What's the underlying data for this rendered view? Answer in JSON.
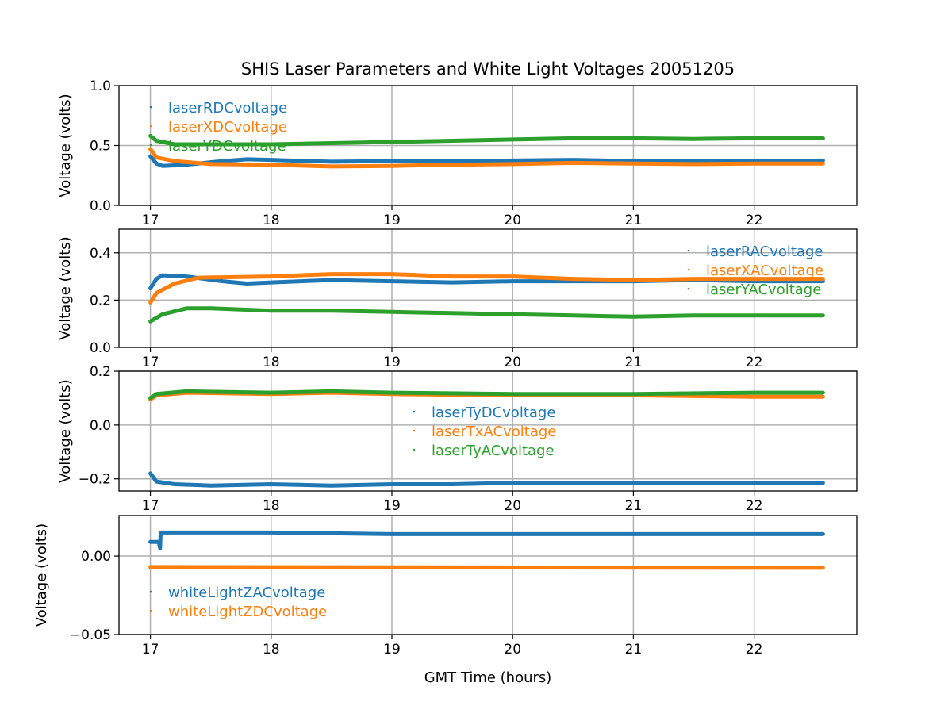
{
  "chart_data": {
    "type": "scatter",
    "title": "SHIS Laser Parameters and White Light Voltages 20051205",
    "xlabel": "GMT Time (hours)",
    "xlim": [
      16.74,
      22.85
    ],
    "xticks": [
      17,
      18,
      19,
      20,
      21,
      22
    ],
    "grid": true,
    "colors": [
      "#1f77b4",
      "#ff7f0e",
      "#2ca02c"
    ],
    "subplots": [
      {
        "ylabel": "Voltage (volts)",
        "ylim": [
          0,
          1.0
        ],
        "yticks": [
          0.0,
          0.5,
          1.0
        ],
        "ytick_labels": [
          "0.0",
          "0.5",
          "1.0"
        ],
        "legend": "upper left",
        "series": [
          {
            "name": "laserRDCvoltage",
            "x": [
              17.0,
              17.05,
              17.1,
              17.3,
              17.6,
              17.8,
              18,
              18.5,
              19,
              19.5,
              20,
              20.5,
              21,
              21.5,
              22,
              22.57
            ],
            "y": [
              0.41,
              0.35,
              0.33,
              0.34,
              0.37,
              0.385,
              0.38,
              0.365,
              0.37,
              0.37,
              0.375,
              0.38,
              0.37,
              0.37,
              0.37,
              0.375
            ]
          },
          {
            "name": "laserXDCvoltage",
            "x": [
              17.0,
              17.05,
              17.2,
              17.5,
              18,
              18.5,
              19,
              19.5,
              20,
              20.5,
              21,
              21.5,
              22,
              22.57
            ],
            "y": [
              0.47,
              0.4,
              0.37,
              0.345,
              0.34,
              0.325,
              0.33,
              0.34,
              0.345,
              0.355,
              0.35,
              0.345,
              0.35,
              0.35
            ]
          },
          {
            "name": "laserYDCvoltage",
            "x": [
              17.0,
              17.05,
              17.2,
              17.5,
              18,
              18.5,
              19,
              19.5,
              20,
              20.5,
              21,
              21.5,
              22,
              22.57
            ],
            "y": [
              0.58,
              0.54,
              0.51,
              0.51,
              0.51,
              0.52,
              0.53,
              0.54,
              0.55,
              0.56,
              0.56,
              0.555,
              0.56,
              0.56
            ]
          }
        ]
      },
      {
        "ylabel": "Voltage (volts)",
        "ylim": [
          0,
          0.5
        ],
        "yticks": [
          0.0,
          0.2,
          0.4
        ],
        "ytick_labels": [
          "0.0",
          "0.2",
          "0.4"
        ],
        "legend": "upper right",
        "series": [
          {
            "name": "laserRACvoltage",
            "x": [
              17.0,
              17.05,
              17.1,
              17.3,
              17.6,
              17.8,
              18,
              18.5,
              19,
              19.5,
              20,
              20.5,
              21,
              21.5,
              22,
              22.57
            ],
            "y": [
              0.25,
              0.29,
              0.305,
              0.3,
              0.28,
              0.27,
              0.275,
              0.285,
              0.28,
              0.275,
              0.28,
              0.28,
              0.28,
              0.285,
              0.28,
              0.28
            ]
          },
          {
            "name": "laserXACvoltage",
            "x": [
              17.0,
              17.05,
              17.2,
              17.4,
              18,
              18.5,
              19,
              19.5,
              20,
              20.5,
              21,
              21.5,
              22,
              22.57
            ],
            "y": [
              0.19,
              0.23,
              0.27,
              0.295,
              0.3,
              0.31,
              0.31,
              0.3,
              0.3,
              0.29,
              0.285,
              0.29,
              0.29,
              0.29
            ]
          },
          {
            "name": "laserYACvoltage",
            "x": [
              17.0,
              17.1,
              17.3,
              17.5,
              18,
              18.5,
              19,
              19.5,
              20,
              20.5,
              21,
              21.5,
              22,
              22.57
            ],
            "y": [
              0.11,
              0.14,
              0.165,
              0.165,
              0.155,
              0.155,
              0.15,
              0.145,
              0.14,
              0.135,
              0.13,
              0.135,
              0.135,
              0.135
            ]
          }
        ]
      },
      {
        "ylabel": "Voltage (volts)",
        "ylim": [
          -0.245,
          0.2
        ],
        "yticks": [
          -0.2,
          0.0,
          0.2
        ],
        "ytick_labels": [
          "−0.2",
          "0.0",
          "0.2"
        ],
        "legend": "center",
        "series": [
          {
            "name": "laserTyDCvoltage",
            "x": [
              17.0,
              17.05,
              17.2,
              17.5,
              18,
              18.5,
              19,
              19.5,
              20,
              21,
              22,
              22.57
            ],
            "y": [
              -0.18,
              -0.21,
              -0.22,
              -0.225,
              -0.22,
              -0.225,
              -0.22,
              -0.22,
              -0.215,
              -0.215,
              -0.215,
              -0.215
            ]
          },
          {
            "name": "laserTxACvoltage",
            "x": [
              17.0,
              17.05,
              17.3,
              18,
              18.5,
              19,
              20,
              21,
              22,
              22.57
            ],
            "y": [
              0.095,
              0.11,
              0.12,
              0.115,
              0.12,
              0.115,
              0.11,
              0.11,
              0.105,
              0.105
            ]
          },
          {
            "name": "laserTyACvoltage",
            "x": [
              17.0,
              17.05,
              17.3,
              18,
              18.5,
              19,
              20,
              21,
              22,
              22.57
            ],
            "y": [
              0.1,
              0.115,
              0.125,
              0.12,
              0.125,
              0.12,
              0.115,
              0.115,
              0.12,
              0.12
            ]
          }
        ]
      },
      {
        "ylabel": "Voltage (volts)",
        "ylim": [
          -0.05,
          0.0258
        ],
        "yticks": [
          -0.05,
          0.0
        ],
        "ytick_labels": [
          "−0.05",
          "0.00"
        ],
        "legend": "lower left",
        "series": [
          {
            "name": "whiteLightZACvoltage",
            "x": [
              17.0,
              17.07,
              17.08,
              17.085,
              18,
              19,
              20,
              21,
              22,
              22.57
            ],
            "y": [
              0.009,
              0.009,
              0.005,
              0.015,
              0.015,
              0.014,
              0.014,
              0.014,
              0.014,
              0.014
            ]
          },
          {
            "name": "whiteLightZDCvoltage",
            "x": [
              17.0,
              22.57
            ],
            "y": [
              -0.007,
              -0.0075
            ]
          }
        ]
      }
    ]
  }
}
